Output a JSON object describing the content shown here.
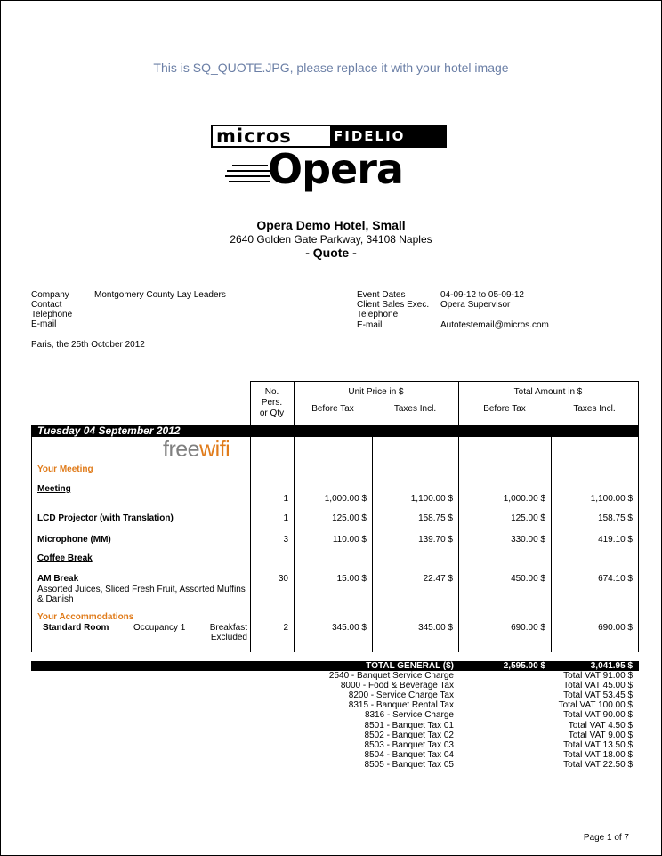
{
  "placeholder_text": "This is SQ_QUOTE.JPG, please replace it with your hotel image",
  "logo": {
    "micros": "micros",
    "fidelio": "FIDELIO",
    "opera": "Opera"
  },
  "hotel": {
    "name": "Opera Demo Hotel, Small",
    "address": "2640 Golden Gate Parkway, 34108 Naples",
    "doc_title": "- Quote -"
  },
  "client": [
    {
      "label": "Company",
      "value": "Montgomery County Lay Leaders"
    },
    {
      "label": "Contact",
      "value": ""
    },
    {
      "label": "Telephone",
      "value": ""
    },
    {
      "label": "E-mail",
      "value": ""
    }
  ],
  "event": [
    {
      "label": "Event Dates",
      "value": "04-09-12 to 05-09-12"
    },
    {
      "label": "Client Sales Exec.",
      "value": "Opera  Supervisor"
    },
    {
      "label": "Telephone",
      "value": ""
    },
    {
      "label": "E-mail",
      "value": "Autotestemail@micros.com"
    }
  ],
  "date_line": "Paris, the 25th October   2012",
  "table_header": {
    "qty": [
      "No.",
      "Pers.",
      "or Qty"
    ],
    "unit_price": "Unit Price in $",
    "total_amount": "Total Amount in $",
    "before_tax": "Before Tax",
    "taxes_incl": "Taxes Incl."
  },
  "day_bar": "Tuesday   04 September 2012",
  "freewifi": {
    "free": "free",
    "wifi": "wifi",
    "colors": {
      "free": "#808080",
      "wifi": "#e07b1a"
    }
  },
  "sections": {
    "meeting": "Your Meeting",
    "accommodations": "Your Accommodations"
  },
  "rows": [
    {
      "label": "Meeting",
      "style": "underline",
      "qty": "1",
      "unit_before": "1,000.00 $",
      "unit_incl": "1,100.00 $",
      "total_before": "1,000.00 $",
      "total_incl": "1,100.00 $"
    },
    {
      "label": "LCD Projector (with Translation)",
      "style": "bold",
      "qty": "1",
      "unit_before": "125.00 $",
      "unit_incl": "158.75 $",
      "total_before": "125.00 $",
      "total_incl": "158.75 $"
    },
    {
      "label": "Microphone (MM)",
      "style": "bold",
      "qty": "3",
      "unit_before": "110.00 $",
      "unit_incl": "139.70 $",
      "total_before": "330.00 $",
      "total_incl": "419.10 $"
    },
    {
      "label": "Coffee Break",
      "style": "underline"
    },
    {
      "label": "AM Break",
      "style": "bold",
      "description": [
        "Assorted Juices, Sliced Fresh Fruit, Assorted Muffins",
        "& Danish"
      ],
      "qty": "30",
      "unit_before": "15.00 $",
      "unit_incl": "22.47 $",
      "total_before": "450.00 $",
      "total_incl": "674.10 $"
    }
  ],
  "room": {
    "label": "Standard Room",
    "occupancy": "Occupancy 1",
    "breakfast": [
      "Breakfast",
      "Excluded"
    ],
    "qty": "2",
    "unit_before": "345.00 $",
    "unit_incl": "345.00 $",
    "total_before": "690.00 $",
    "total_incl": "690.00 $"
  },
  "total": {
    "label": "TOTAL GENERAL ($)",
    "before_tax": "2,595.00 $",
    "taxes_incl": "3,041.95 $"
  },
  "taxes": [
    {
      "name": "2540 - Banquet Service Charge",
      "amount": "Total VAT 91.00 $"
    },
    {
      "name": "8000 - Food & Beverage Tax",
      "amount": "Total VAT 45.00 $"
    },
    {
      "name": "8200 - Service Charge Tax",
      "amount": "Total VAT 53.45 $"
    },
    {
      "name": "8315 - Banquet Rental Tax",
      "amount": "Total VAT 100.00 $"
    },
    {
      "name": "8316 - Service Charge",
      "amount": "Total VAT 90.00 $"
    },
    {
      "name": "8501 - Banquet Tax 01",
      "amount": "Total VAT 4.50 $"
    },
    {
      "name": "8502 - Banquet Tax 02",
      "amount": "Total VAT 9.00 $"
    },
    {
      "name": "8503 - Banquet Tax 03",
      "amount": "Total VAT 13.50 $"
    },
    {
      "name": "8504 - Banquet Tax 04",
      "amount": "Total VAT 18.00 $"
    },
    {
      "name": "8505 - Banquet Tax 05",
      "amount": "Total VAT 22.50 $"
    }
  ],
  "page_number": "Page 1 of 7"
}
